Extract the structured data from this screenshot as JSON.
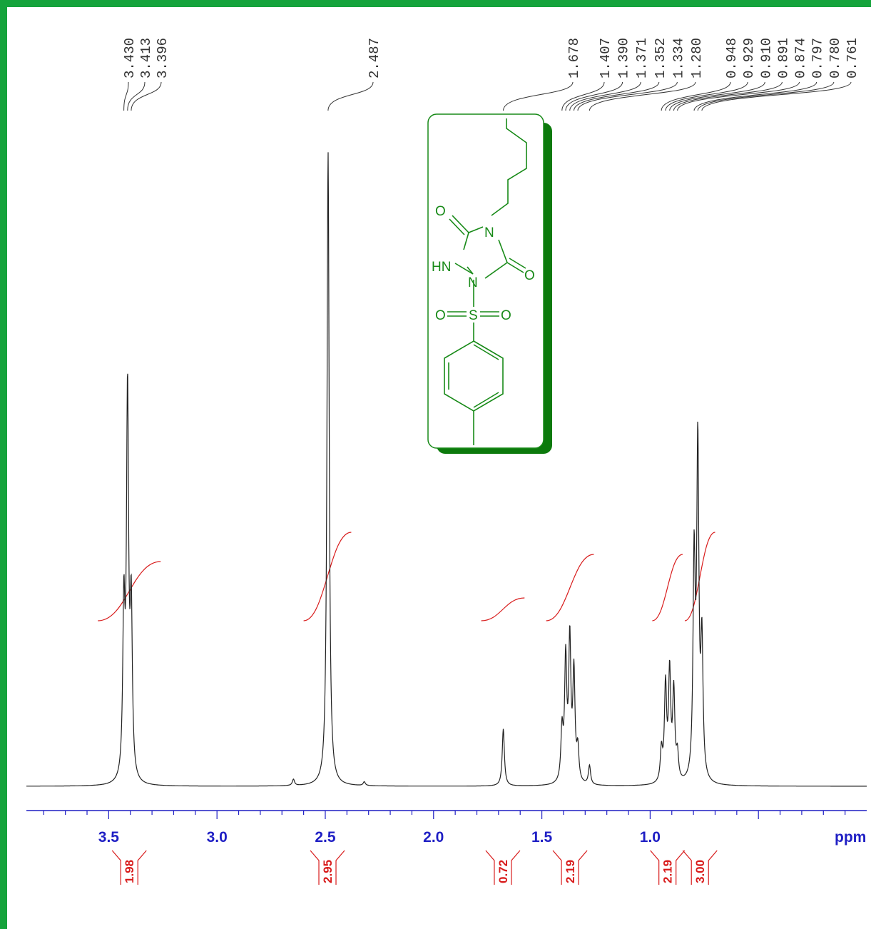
{
  "chart_data": {
    "type": "line",
    "xlabel": "ppm",
    "xlim": [
      3.88,
      0.0
    ],
    "x_ticks": [
      "3.5",
      "3.0",
      "2.5",
      "2.0",
      "1.5",
      "1.0"
    ],
    "peak_labels": [
      "3.430",
      "3.413",
      "3.396",
      "2.487",
      "1.678",
      "1.407",
      "1.390",
      "1.371",
      "1.352",
      "1.334",
      "1.280",
      "0.948",
      "0.929",
      "0.910",
      "0.891",
      "0.874",
      "0.797",
      "0.780",
      "0.761"
    ],
    "peaks": [
      {
        "ppm": 3.43,
        "height": 0.26
      },
      {
        "ppm": 3.413,
        "height": 0.6
      },
      {
        "ppm": 3.396,
        "height": 0.26
      },
      {
        "ppm": 2.647,
        "height": 0.01
      },
      {
        "ppm": 2.487,
        "height": 1.0
      },
      {
        "ppm": 2.32,
        "height": 0.006
      },
      {
        "ppm": 1.678,
        "height": 0.09
      },
      {
        "ppm": 1.407,
        "height": 0.08
      },
      {
        "ppm": 1.39,
        "height": 0.19
      },
      {
        "ppm": 1.371,
        "height": 0.22
      },
      {
        "ppm": 1.352,
        "height": 0.17
      },
      {
        "ppm": 1.334,
        "height": 0.05
      },
      {
        "ppm": 1.28,
        "height": 0.03
      },
      {
        "ppm": 0.948,
        "height": 0.05
      },
      {
        "ppm": 0.929,
        "height": 0.15
      },
      {
        "ppm": 0.91,
        "height": 0.17
      },
      {
        "ppm": 0.891,
        "height": 0.14
      },
      {
        "ppm": 0.874,
        "height": 0.04
      },
      {
        "ppm": 0.797,
        "height": 0.34
      },
      {
        "ppm": 0.78,
        "height": 0.52
      },
      {
        "ppm": 0.761,
        "height": 0.21
      }
    ],
    "integrals": [
      {
        "from": 3.55,
        "to": 3.26,
        "value": "1.98"
      },
      {
        "from": 2.6,
        "to": 2.38,
        "value": "2.95"
      },
      {
        "from": 1.78,
        "to": 1.58,
        "value": "0.72"
      },
      {
        "from": 1.48,
        "to": 1.26,
        "value": "2.19"
      },
      {
        "from": 0.99,
        "to": 0.85,
        "value": "2.19"
      },
      {
        "from": 0.84,
        "to": 0.7,
        "value": "3.00"
      }
    ]
  },
  "structure": {
    "atoms": [
      "O",
      "N",
      "HN",
      "N",
      "O",
      "O",
      "S",
      "O"
    ],
    "colors": {
      "structure": "#188a18",
      "box_shadow": "#0c7a0c"
    }
  },
  "colors": {
    "trace": "#222222",
    "axis": "#1f1fc4",
    "integral": "#d81b1b",
    "frame": "#15a33c"
  }
}
